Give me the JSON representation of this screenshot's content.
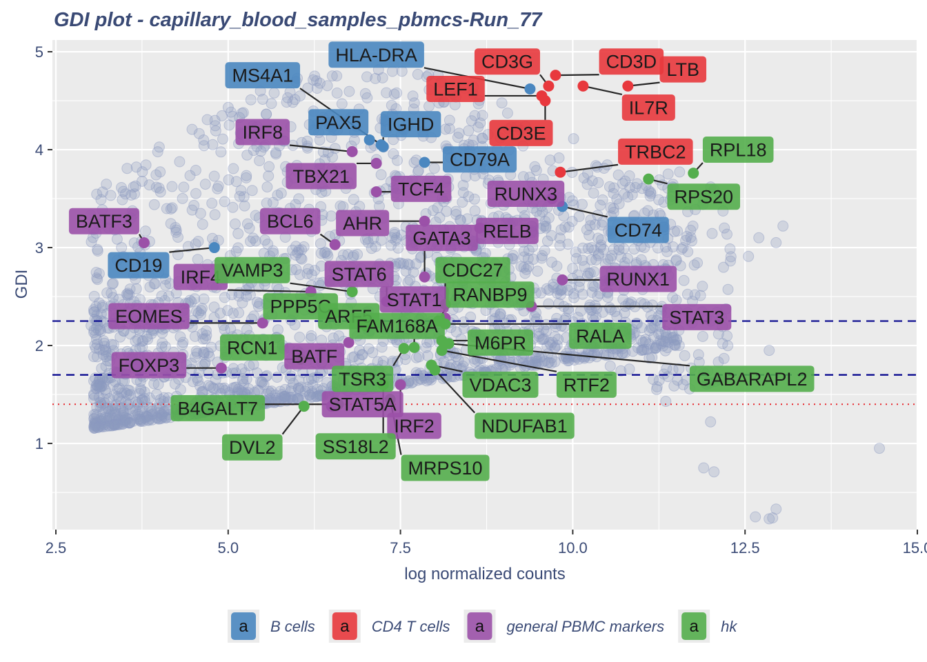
{
  "chart_data": {
    "type": "scatter",
    "title": "GDI plot - capillary_blood_samples_pbmcs-Run_77",
    "xlabel": "log normalized counts",
    "ylabel": "GDI",
    "xlim": [
      2.45,
      15.0
    ],
    "ylim": [
      0.12,
      5.12
    ],
    "xticks": [
      2.5,
      5.0,
      7.5,
      10.0,
      12.5,
      15.0
    ],
    "xtick_labels": [
      "2.5",
      "5.0",
      "7.5",
      "10.0",
      "12.5",
      "15.0"
    ],
    "yticks": [
      1,
      2,
      3,
      4,
      5
    ],
    "ytick_labels": [
      "1",
      "2",
      "3",
      "4",
      "5"
    ],
    "grid": true,
    "legend_position": "bottom",
    "hlines": [
      {
        "y": 2.25,
        "style": "dashed",
        "color": "#00008b"
      },
      {
        "y": 1.7,
        "style": "dashed",
        "color": "#00008b"
      },
      {
        "y": 1.4,
        "style": "dotted",
        "color": "#e8242a"
      }
    ],
    "background_points_color": "#8c9ac0",
    "background_outliers": [
      [
        14.45,
        0.95
      ],
      [
        12.65,
        0.25
      ],
      [
        12.85,
        0.23
      ],
      [
        12.9,
        0.24
      ],
      [
        12.95,
        0.33
      ],
      [
        12.05,
        0.71
      ],
      [
        11.9,
        0.75
      ],
      [
        12.0,
        1.22
      ],
      [
        11.35,
        1.43
      ],
      [
        12.85,
        1.95
      ],
      [
        13.05,
        3.22
      ],
      [
        12.95,
        3.05
      ],
      [
        12.55,
        2.91
      ],
      [
        12.7,
        3.1
      ],
      [
        12.2,
        3.2
      ],
      [
        11.6,
        3.0
      ]
    ],
    "groups": [
      {
        "name": "B cells",
        "color": "#4a87c0"
      },
      {
        "name": "CD4 T cells",
        "color": "#e8383d"
      },
      {
        "name": "general PBMC markers",
        "color": "#9b51a8"
      },
      {
        "name": "hk",
        "color": "#54ae4d"
      }
    ],
    "legend_key_text": "a",
    "points": [
      {
        "label": "HLA-DRA",
        "group": 0,
        "x": 9.38,
        "y": 4.62,
        "lx": 7.15,
        "ly": 4.97
      },
      {
        "label": "MS4A1",
        "group": 0,
        "x": 7.22,
        "y": 4.05,
        "lx": 5.5,
        "ly": 4.76
      },
      {
        "label": "PAX5",
        "group": 0,
        "x": 7.05,
        "y": 4.1,
        "lx": 6.6,
        "ly": 4.28
      },
      {
        "label": "IGHD",
        "group": 0,
        "x": 7.25,
        "y": 4.03,
        "lx": 7.65,
        "ly": 4.26
      },
      {
        "label": "CD79A",
        "group": 0,
        "x": 7.85,
        "y": 3.87,
        "lx": 8.65,
        "ly": 3.9
      },
      {
        "label": "CD74",
        "group": 0,
        "x": 9.85,
        "y": 3.42,
        "lx": 10.95,
        "ly": 3.18
      },
      {
        "label": "CD19",
        "group": 0,
        "x": 4.8,
        "y": 3.0,
        "lx": 3.7,
        "ly": 2.82
      },
      {
        "label": "CD3G",
        "group": 1,
        "x": 9.65,
        "y": 4.65,
        "lx": 9.05,
        "ly": 4.9
      },
      {
        "label": "CD3D",
        "group": 1,
        "x": 9.75,
        "y": 4.76,
        "lx": 10.85,
        "ly": 4.9
      },
      {
        "label": "LTB",
        "group": 1,
        "x": 10.8,
        "y": 4.65,
        "lx": 11.6,
        "ly": 4.82
      },
      {
        "label": "LEF1",
        "group": 1,
        "x": 9.55,
        "y": 4.55,
        "lx": 8.3,
        "ly": 4.62
      },
      {
        "label": "IL7R",
        "group": 1,
        "x": 10.15,
        "y": 4.65,
        "lx": 11.1,
        "ly": 4.43
      },
      {
        "label": "CD3E",
        "group": 1,
        "x": 9.6,
        "y": 4.5,
        "lx": 9.25,
        "ly": 4.17
      },
      {
        "label": "TRBC2",
        "group": 1,
        "x": 9.82,
        "y": 3.77,
        "lx": 11.2,
        "ly": 3.98
      },
      {
        "label": "IRF8",
        "group": 2,
        "x": 6.8,
        "y": 3.98,
        "lx": 5.5,
        "ly": 4.18
      },
      {
        "label": "TBX21",
        "group": 2,
        "x": 7.15,
        "y": 3.86,
        "lx": 6.35,
        "ly": 3.73
      },
      {
        "label": "TCF4",
        "group": 2,
        "x": 7.15,
        "y": 3.57,
        "lx": 7.8,
        "ly": 3.6
      },
      {
        "label": "RUNX3",
        "group": 2,
        "x": 9.7,
        "y": 3.5,
        "lx": 9.32,
        "ly": 3.55
      },
      {
        "label": "BATF3",
        "group": 2,
        "x": 3.78,
        "y": 3.05,
        "lx": 3.2,
        "ly": 3.27
      },
      {
        "label": "BCL6",
        "group": 2,
        "x": 6.55,
        "y": 3.03,
        "lx": 5.9,
        "ly": 3.27
      },
      {
        "label": "AHR",
        "group": 2,
        "x": 7.85,
        "y": 3.27,
        "lx": 6.95,
        "ly": 3.25
      },
      {
        "label": "RELB",
        "group": 2,
        "x": 8.65,
        "y": 3.2,
        "lx": 9.05,
        "ly": 3.17
      },
      {
        "label": "GATA3",
        "group": 2,
        "x": 7.85,
        "y": 2.7,
        "lx": 8.1,
        "ly": 3.1
      },
      {
        "label": "IRF4",
        "group": 2,
        "x": 6.2,
        "y": 2.55,
        "lx": 4.6,
        "ly": 2.7
      },
      {
        "label": "STAT6",
        "group": 2,
        "x": 7.3,
        "y": 2.45,
        "lx": 6.9,
        "ly": 2.73
      },
      {
        "label": "RUNX1",
        "group": 2,
        "x": 9.85,
        "y": 2.67,
        "lx": 10.95,
        "ly": 2.68
      },
      {
        "label": "STAT1",
        "group": 2,
        "x": 8.15,
        "y": 2.28,
        "lx": 7.7,
        "ly": 2.47
      },
      {
        "label": "EOMES",
        "group": 2,
        "x": 5.5,
        "y": 2.23,
        "lx": 3.85,
        "ly": 2.3
      },
      {
        "label": "STAT3",
        "group": 2,
        "x": 9.4,
        "y": 2.4,
        "lx": 11.8,
        "ly": 2.29
      },
      {
        "label": "BATF",
        "group": 2,
        "x": 6.75,
        "y": 2.03,
        "lx": 6.25,
        "ly": 1.89
      },
      {
        "label": "FOXP3",
        "group": 2,
        "x": 4.9,
        "y": 1.77,
        "lx": 3.85,
        "ly": 1.8
      },
      {
        "label": "STAT5A",
        "group": 2,
        "x": 6.5,
        "y": 1.38,
        "lx": 6.95,
        "ly": 1.4
      },
      {
        "label": "IRF2",
        "group": 2,
        "x": 7.5,
        "y": 1.6,
        "lx": 7.7,
        "ly": 1.18
      },
      {
        "label": "RPL18",
        "group": 3,
        "x": 11.75,
        "y": 3.76,
        "lx": 12.4,
        "ly": 4.0
      },
      {
        "label": "RPS20",
        "group": 3,
        "x": 11.1,
        "y": 3.7,
        "lx": 11.9,
        "ly": 3.52
      },
      {
        "label": "VAMP3",
        "group": 3,
        "x": 6.8,
        "y": 2.55,
        "lx": 5.35,
        "ly": 2.77
      },
      {
        "label": "CDC27",
        "group": 3,
        "x": 8.15,
        "y": 2.42,
        "lx": 8.55,
        "ly": 2.77
      },
      {
        "label": "PPP5C",
        "group": 3,
        "x": 6.55,
        "y": 2.33,
        "lx": 6.05,
        "ly": 2.4
      },
      {
        "label": "ARF5",
        "group": 3,
        "x": 7.0,
        "y": 2.2,
        "lx": 6.75,
        "ly": 2.3
      },
      {
        "label": "RANBP9",
        "group": 3,
        "x": 8.05,
        "y": 2.25,
        "lx": 8.8,
        "ly": 2.52
      },
      {
        "label": "FAM168A",
        "group": 3,
        "x": 7.7,
        "y": 1.98,
        "lx": 7.45,
        "ly": 2.2
      },
      {
        "label": "RALA",
        "group": 3,
        "x": 8.15,
        "y": 2.22,
        "lx": 10.4,
        "ly": 2.1
      },
      {
        "label": "M6PR",
        "group": 3,
        "x": 8.1,
        "y": 2.05,
        "lx": 8.95,
        "ly": 2.03
      },
      {
        "label": "RCN1",
        "group": 3,
        "x": 6.05,
        "y": 1.86,
        "lx": 5.35,
        "ly": 1.98
      },
      {
        "label": "TSR3",
        "group": 3,
        "x": 7.55,
        "y": 1.97,
        "lx": 6.95,
        "ly": 1.66
      },
      {
        "label": "VDAC3",
        "group": 3,
        "x": 7.95,
        "y": 1.8,
        "lx": 8.95,
        "ly": 1.6
      },
      {
        "label": "RTF2",
        "group": 3,
        "x": 8.1,
        "y": 1.95,
        "lx": 10.2,
        "ly": 1.6
      },
      {
        "label": "GABARAPL2",
        "group": 3,
        "x": 8.2,
        "y": 2.02,
        "lx": 12.6,
        "ly": 1.66
      },
      {
        "label": "B4GALT7",
        "group": 3,
        "x": 6.6,
        "y": 1.4,
        "lx": 4.85,
        "ly": 1.36
      },
      {
        "label": "DVL2",
        "group": 3,
        "x": 6.1,
        "y": 1.38,
        "lx": 5.35,
        "ly": 0.96
      },
      {
        "label": "SS18L2",
        "group": 3,
        "x": 7.25,
        "y": 1.6,
        "lx": 6.85,
        "ly": 0.97
      },
      {
        "label": "NDUFAB1",
        "group": 3,
        "x": 8.0,
        "y": 1.75,
        "lx": 9.3,
        "ly": 1.18
      },
      {
        "label": "MRPS10",
        "group": 3,
        "x": 7.35,
        "y": 1.45,
        "lx": 8.15,
        "ly": 0.75
      }
    ]
  }
}
